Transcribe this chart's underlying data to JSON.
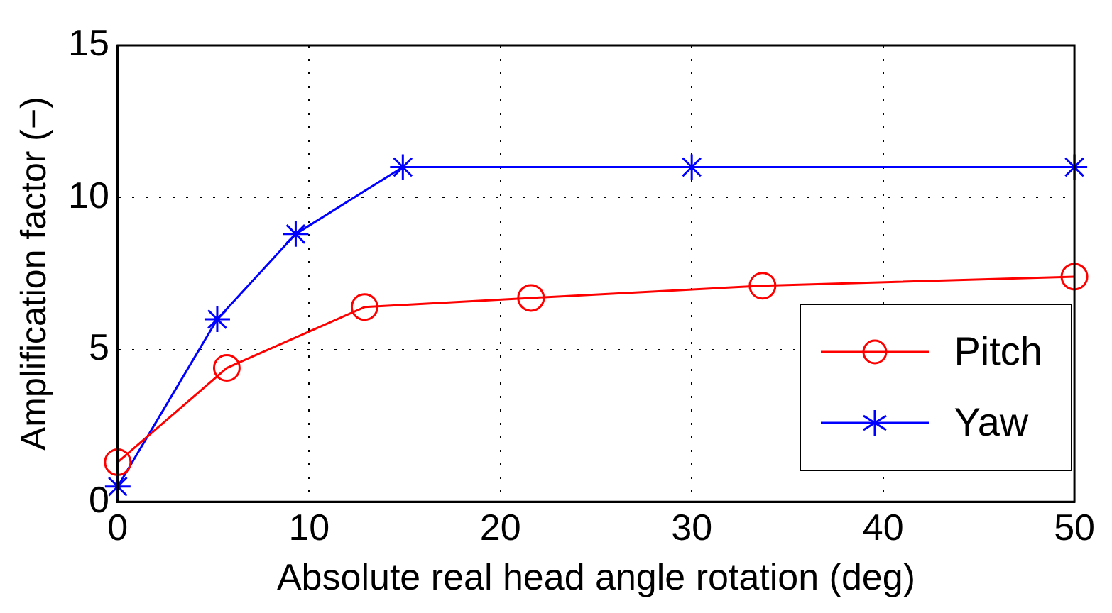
{
  "chart_data": {
    "type": "line",
    "xlabel": "Absolute real head angle rotation (deg)",
    "ylabel": "Amplification factor (−)",
    "xlim": [
      0,
      50
    ],
    "xticks": [
      0,
      10,
      20,
      30,
      40,
      50
    ],
    "ylim": [
      0,
      15
    ],
    "yticks": [
      0,
      5,
      10,
      15
    ],
    "grid": true,
    "legend": "bottom right",
    "line_style": "solid",
    "series": [
      {
        "name": "Pitch",
        "color": "#ff0000",
        "marker": "circle",
        "x": [
          0,
          5.7,
          12.9,
          21.6,
          33.7,
          50
        ],
        "values": [
          1.3,
          4.4,
          6.4,
          6.7,
          7.1,
          7.4
        ]
      },
      {
        "name": "Yaw",
        "color": "#0000ff",
        "marker": "cross",
        "x": [
          0,
          5.2,
          9.3,
          14.9,
          30,
          50
        ],
        "values": [
          0.5,
          6.0,
          8.8,
          11.0,
          11.0,
          11.0
        ]
      }
    ]
  }
}
